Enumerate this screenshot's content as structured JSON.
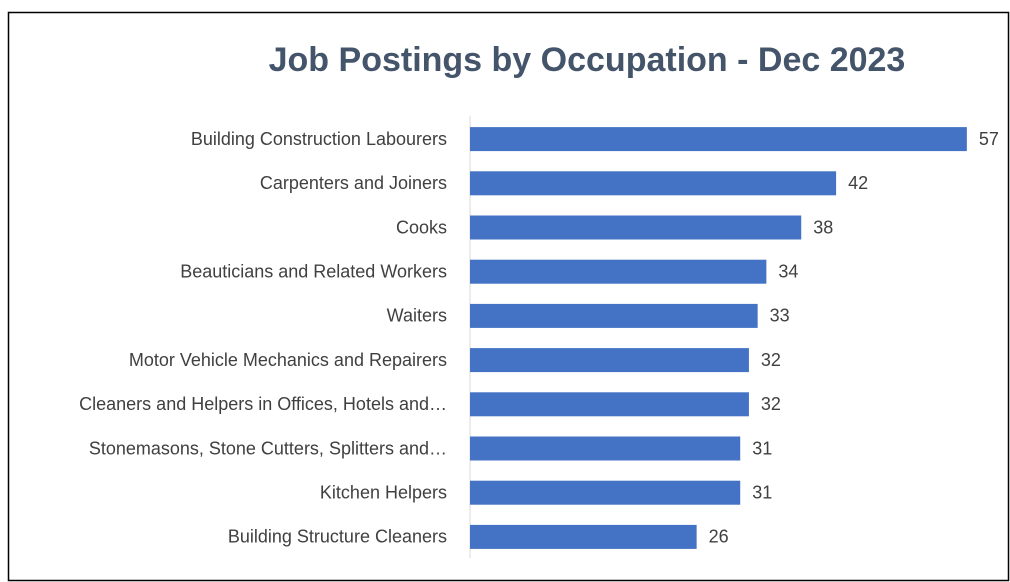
{
  "chart_data": {
    "type": "bar",
    "orientation": "horizontal",
    "title": "Job Postings by Occupation - Dec 2023",
    "categories": [
      "Building Construction Labourers",
      "Carpenters and Joiners",
      "Cooks",
      "Beauticians and Related Workers",
      "Waiters",
      "Motor Vehicle Mechanics and Repairers",
      "Cleaners and Helpers in Offices, Hotels and…",
      "Stonemasons, Stone Cutters, Splitters and…",
      "Kitchen Helpers",
      "Building Structure Cleaners"
    ],
    "values": [
      57,
      42,
      38,
      34,
      33,
      32,
      32,
      31,
      31,
      26
    ],
    "color": "#4472c4",
    "xlim": [
      0,
      60
    ]
  }
}
